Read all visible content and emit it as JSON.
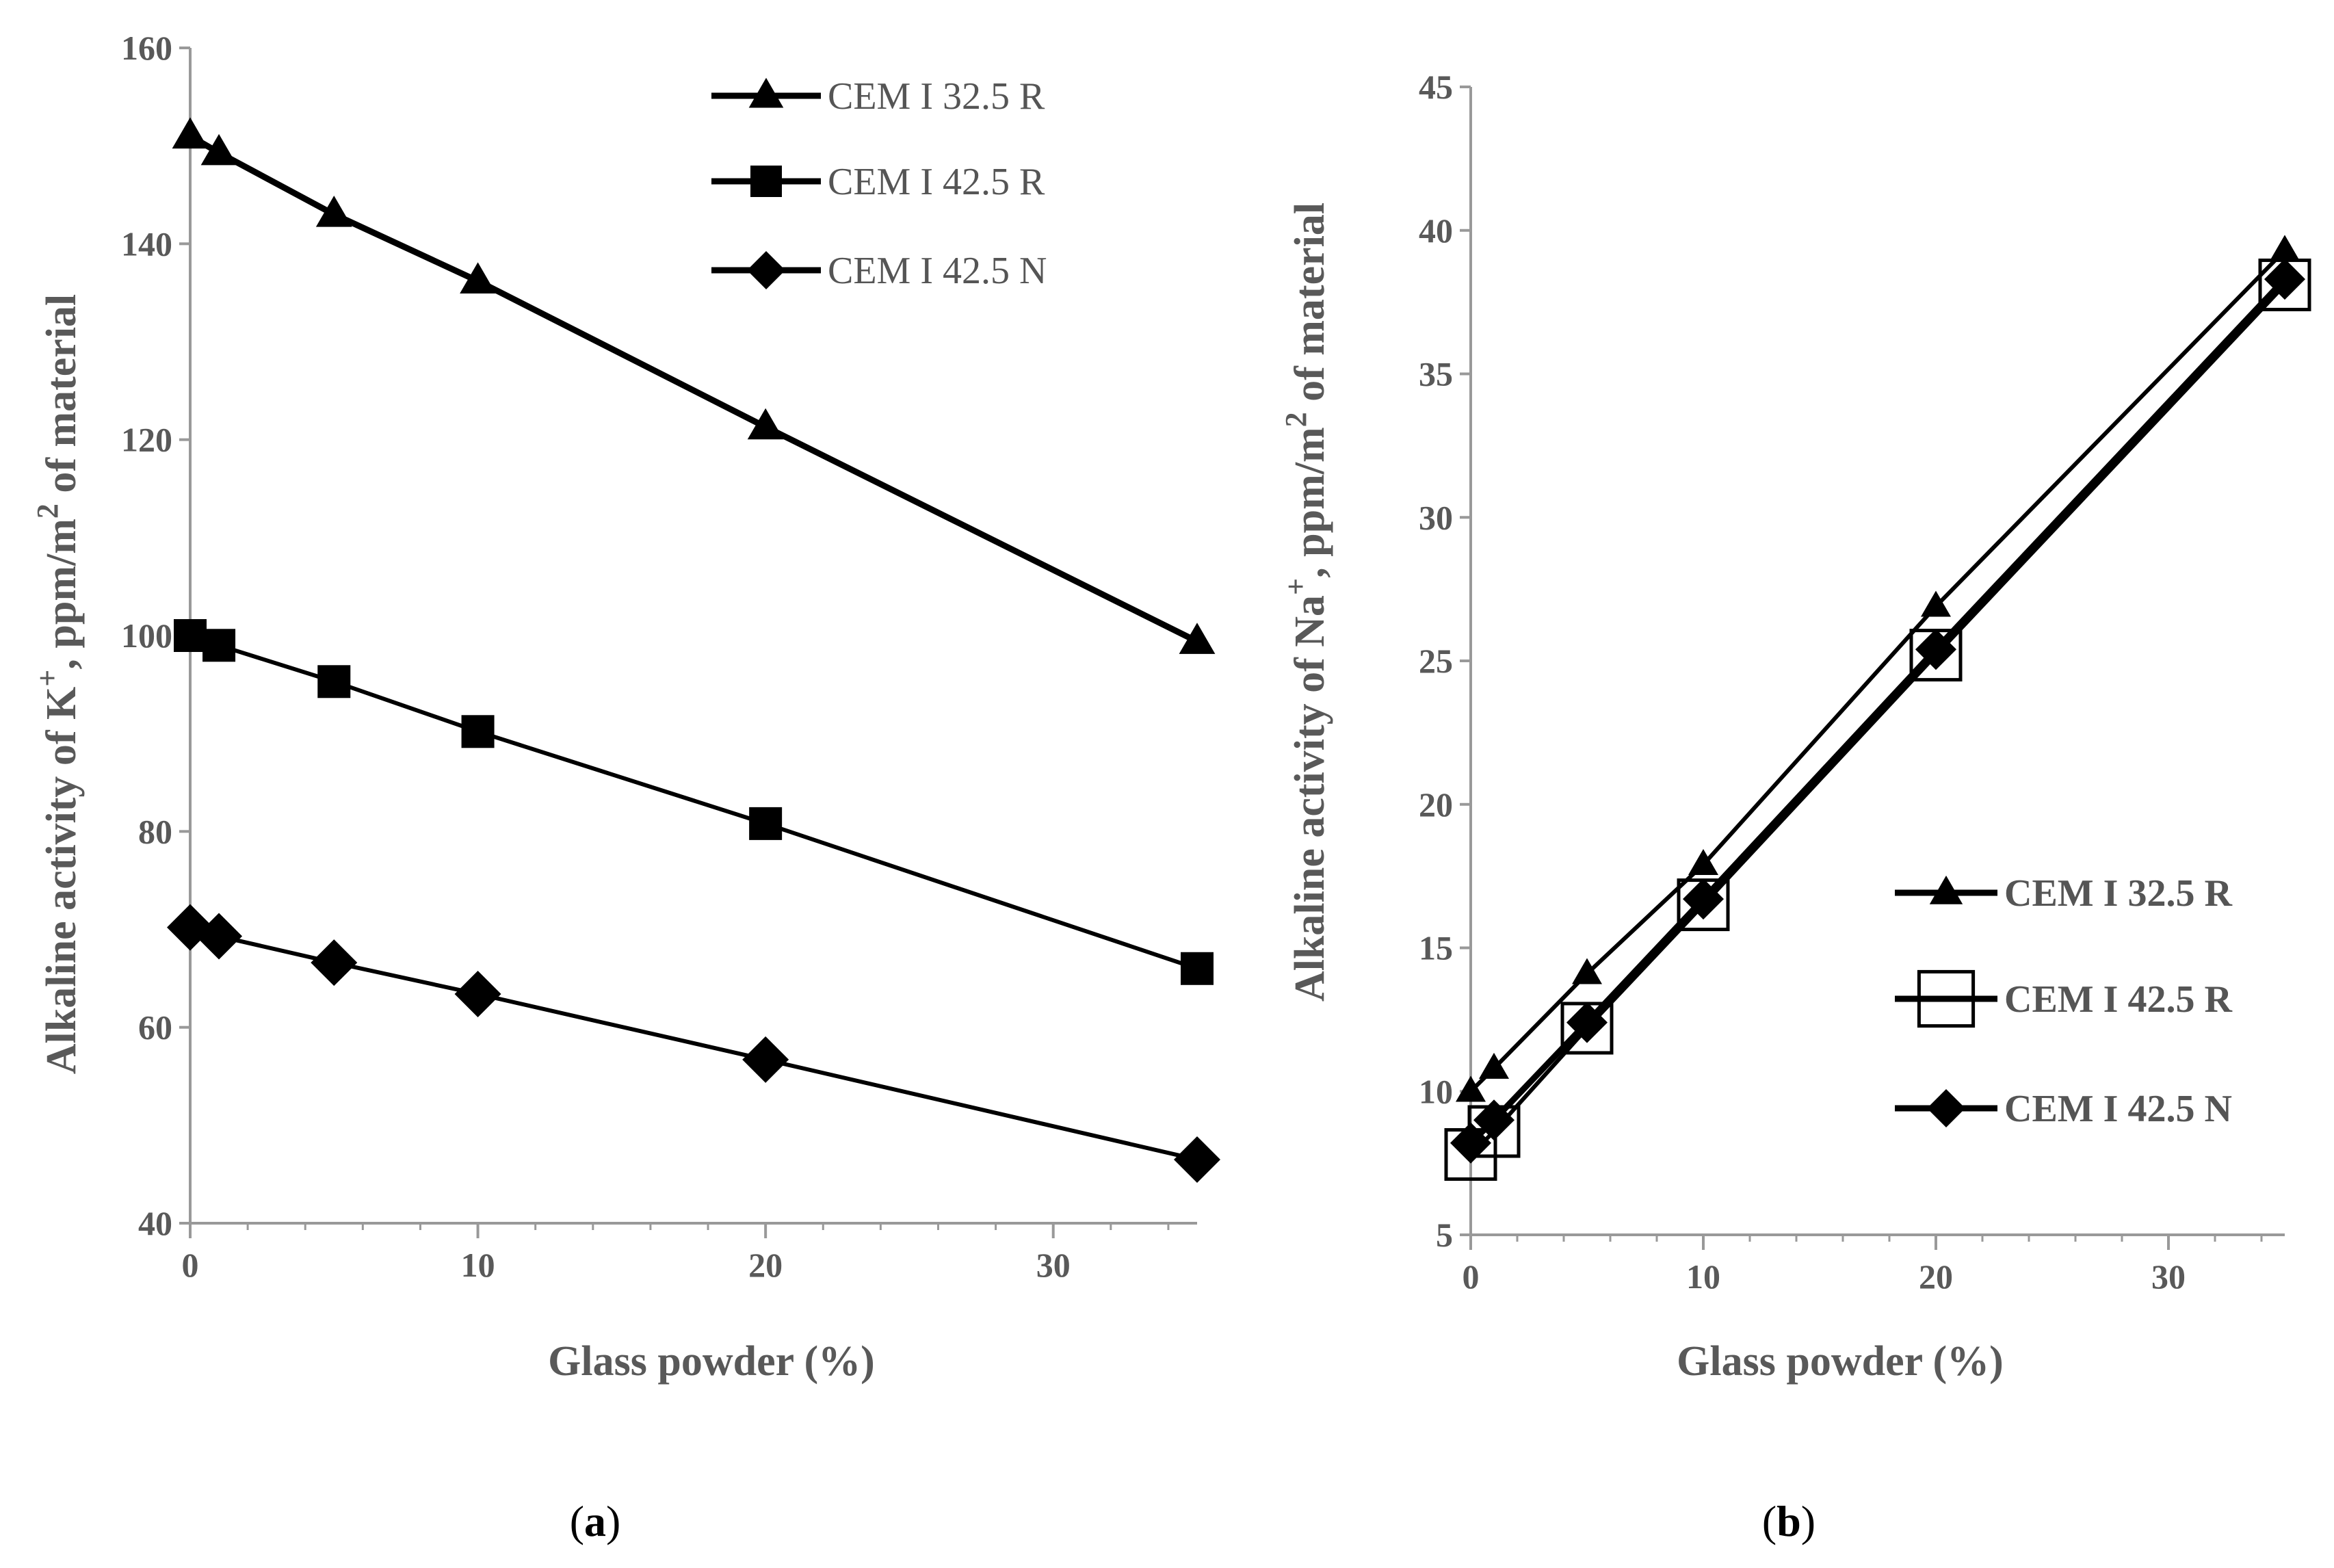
{
  "chart_data": [
    {
      "type": "line",
      "panel_label": "(a)",
      "xlabel": "Glass powder  (%)",
      "ylabel_main": "Alkaline  activity of K",
      "ylabel_sup": "+",
      "ylabel_tail": ", ppm/m",
      "ylabel_sup2": "2",
      "ylabel_end": " of material",
      "xlim": [
        0,
        35
      ],
      "ylim": [
        40,
        160
      ],
      "xticks": [
        0,
        10,
        20,
        30
      ],
      "yticks": [
        40,
        60,
        80,
        100,
        120,
        140,
        160
      ],
      "x": [
        0,
        1,
        5,
        10,
        20,
        35
      ],
      "series": [
        {
          "name": "CEM I 32.5 R",
          "marker": "triangle",
          "values": [
            151,
            149.3,
            143,
            136.2,
            121.3,
            99.4
          ]
        },
        {
          "name": "CEM I 42.5 R",
          "marker": "square",
          "values": [
            100,
            99,
            95.3,
            90.2,
            80.8,
            66
          ]
        },
        {
          "name": "CEM I 42.5 N",
          "marker": "diamond",
          "values": [
            70.2,
            69.3,
            66.6,
            63.4,
            56.7,
            46.5
          ]
        }
      ],
      "legend_position": "top-right"
    },
    {
      "type": "line",
      "panel_label": "(b)",
      "xlabel": "Glass powder (%)",
      "ylabel_main": "Alkaline  activity of Na",
      "ylabel_sup": "+",
      "ylabel_tail": ", ppm/m",
      "ylabel_sup2": "2",
      "ylabel_end": " of material",
      "xlim": [
        0,
        35
      ],
      "ylim": [
        5,
        45
      ],
      "xticks": [
        0,
        10,
        20,
        30
      ],
      "yticks": [
        5,
        10,
        15,
        20,
        25,
        30,
        35,
        40,
        45
      ],
      "x": [
        0,
        1,
        5,
        10,
        20,
        35
      ],
      "series": [
        {
          "name": "CEM I 32.5 R",
          "marker": "triangle",
          "values": [
            10,
            10.8,
            14.1,
            17.9,
            26.9,
            39.3
          ]
        },
        {
          "name": "CEM I 42.5 R",
          "marker": "open-square",
          "values": [
            7.8,
            8.6,
            12.2,
            16.5,
            25.2,
            38.1
          ]
        },
        {
          "name": "CEM I 42.5 N",
          "marker": "diamond",
          "values": [
            8.2,
            9,
            12.4,
            16.7,
            25.4,
            38.3
          ]
        }
      ],
      "legend_position": "lower-right"
    }
  ]
}
